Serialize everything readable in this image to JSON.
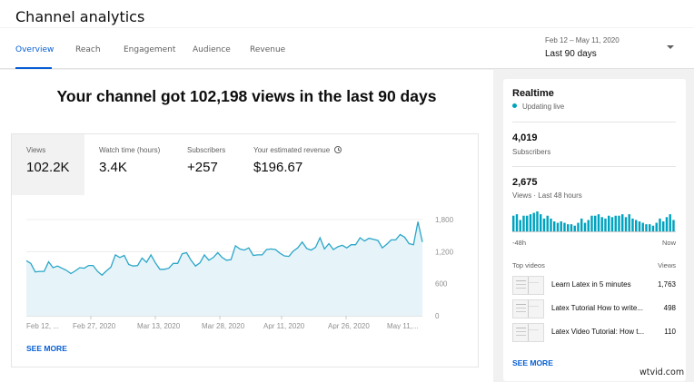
{
  "header": {
    "title": "Channel analytics",
    "tabs": [
      {
        "label": "Overview",
        "active": true
      },
      {
        "label": "Reach",
        "active": false
      },
      {
        "label": "Engagement",
        "active": false
      },
      {
        "label": "Audience",
        "active": false
      },
      {
        "label": "Revenue",
        "active": false
      }
    ],
    "date_range": {
      "dates": "Feb 12 – May 11, 2020",
      "selected": "Last 90 days"
    }
  },
  "overview": {
    "headline": "Your channel got 102,198 views in the last 90 days",
    "metrics": [
      {
        "label": "Views",
        "value": "102.2K",
        "selected": true
      },
      {
        "label": "Watch time (hours)",
        "value": "3.4K",
        "selected": false
      },
      {
        "label": "Subscribers",
        "value": "+257",
        "selected": false
      },
      {
        "label": "Your estimated revenue",
        "value": "$196.67",
        "selected": false,
        "icon": "clock-icon"
      }
    ],
    "see_more": "SEE MORE"
  },
  "chart_data": [
    {
      "type": "area",
      "title": "Views",
      "xlabel": "",
      "ylabel": "",
      "ylim": [
        0,
        1800
      ],
      "yticks": [
        0,
        600,
        1200,
        1800
      ],
      "ytick_labels": [
        "0",
        "600",
        "1,200",
        "1,800"
      ],
      "xtick_labels": [
        "Feb 12, ...",
        "Feb 27, 2020",
        "Mar 13, 2020",
        "Mar 28, 2020",
        "Apr 11, 2020",
        "Apr 26, 2020",
        "May 11,..."
      ],
      "grid": true,
      "color": "#2aa6c8",
      "fill": "#e6f4f9",
      "values": [
        1030,
        980,
        820,
        830,
        830,
        1010,
        900,
        930,
        890,
        850,
        790,
        840,
        900,
        890,
        940,
        940,
        830,
        760,
        840,
        910,
        1140,
        1090,
        1130,
        960,
        930,
        940,
        1080,
        1000,
        1140,
        990,
        870,
        870,
        890,
        980,
        980,
        1160,
        1180,
        1040,
        930,
        990,
        1140,
        1040,
        1090,
        1180,
        1090,
        1040,
        1050,
        1310,
        1250,
        1230,
        1270,
        1130,
        1140,
        1140,
        1240,
        1250,
        1240,
        1170,
        1120,
        1110,
        1210,
        1270,
        1380,
        1260,
        1230,
        1280,
        1460,
        1250,
        1350,
        1240,
        1290,
        1320,
        1270,
        1330,
        1330,
        1460,
        1400,
        1450,
        1430,
        1410,
        1270,
        1340,
        1420,
        1420,
        1520,
        1470,
        1350,
        1330,
        1760,
        1380
      ]
    },
    {
      "type": "bar",
      "title": "Views · Last 48 hours",
      "x_labels": [
        "-48h",
        "Now"
      ],
      "color": "#00a3bf",
      "values": [
        11,
        12,
        8,
        11,
        11,
        12,
        13,
        14,
        12,
        9,
        11,
        9,
        7,
        6,
        7,
        6,
        5,
        5,
        4,
        6,
        9,
        6,
        8,
        11,
        11,
        12,
        10,
        9,
        11,
        10,
        11,
        11,
        12,
        10,
        12,
        9,
        8,
        7,
        6,
        5,
        5,
        4,
        6,
        9,
        7,
        10,
        12,
        8
      ]
    }
  ],
  "realtime": {
    "title": "Realtime",
    "status": "Updating live",
    "subscribers_value": "4,019",
    "subscribers_label": "Subscribers",
    "views_value": "2,675",
    "views_label": "Views · Last 48 hours",
    "axis_start": "-48h",
    "axis_end": "Now",
    "top_videos_label": "Top videos",
    "views_col_label": "Views",
    "videos": [
      {
        "title": "Learn Latex in 5 minutes",
        "views": "1,763"
      },
      {
        "title": "Latex Tutorial How to write...",
        "views": "498"
      },
      {
        "title": "Latex Video Tutorial: How t...",
        "views": "110"
      }
    ],
    "see_more": "SEE MORE"
  },
  "watermark": "wtvid.com",
  "colors": {
    "accent": "#065fd4",
    "chart_line": "#2aa6c8",
    "chart_fill": "#e6f4f9",
    "realtime_bar": "#00a3bf"
  }
}
